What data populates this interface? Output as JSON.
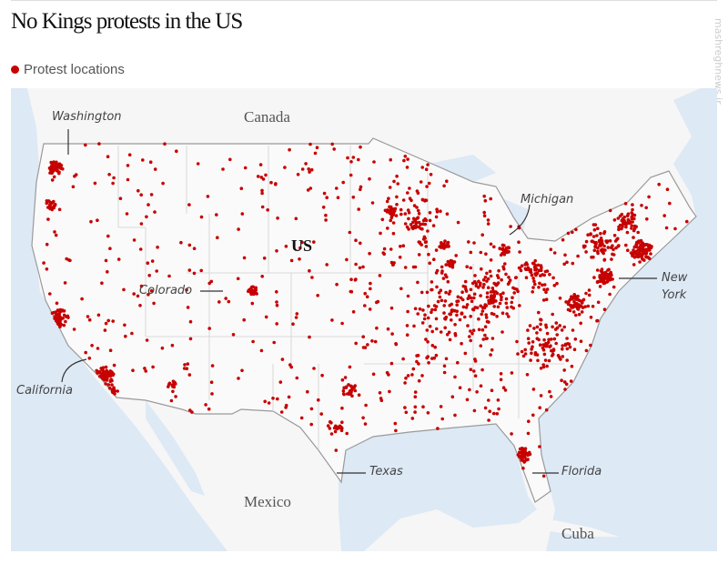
{
  "title": "No Kings protests in the US",
  "legend": {
    "label": "Protest locations",
    "color": "#c70000"
  },
  "map": {
    "colors": {
      "water": "#dde9f5",
      "land": "#f6f6f6",
      "border": "#9a9a9a",
      "dot": "#c70000"
    },
    "country_labels": {
      "canada": "Canada",
      "us": "US",
      "mexico": "Mexico",
      "cuba": "Cuba"
    },
    "state_labels": {
      "washington": "Washington",
      "michigan": "Michigan",
      "colorado": "Colorado",
      "new_york_1": "New",
      "new_york_2": "York",
      "california": "California",
      "texas": "Texas",
      "florida": "Florida"
    }
  },
  "watermark": "mashreghnews.ir"
}
